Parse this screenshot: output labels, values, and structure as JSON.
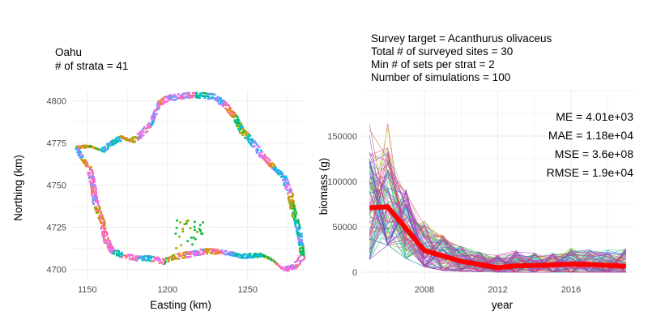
{
  "chart_data": [
    {
      "type": "scatter",
      "title_lines": [
        "Oahu",
        "# of strata = 41"
      ],
      "xlabel": "Easting (km)",
      "ylabel": "Northing (km)",
      "xlim": [
        1140,
        1285
      ],
      "ylim": [
        4694,
        4806
      ],
      "xticks": [
        1150,
        1200,
        1250
      ],
      "yticks": [
        4700,
        4725,
        4750,
        4775,
        4800
      ],
      "grid": true,
      "palette": [
        "#F8766D",
        "#D39200",
        "#93AA00",
        "#00BA38",
        "#00C19F",
        "#00B9E3",
        "#619CFF",
        "#DB72FB",
        "#FF61C3"
      ],
      "coastline": [
        [
          1144,
          4772
        ],
        [
          1152,
          4773
        ],
        [
          1160,
          4770
        ],
        [
          1165,
          4774
        ],
        [
          1172,
          4778
        ],
        [
          1178,
          4776
        ],
        [
          1182,
          4778
        ],
        [
          1190,
          4786
        ],
        [
          1195,
          4798
        ],
        [
          1200,
          4801
        ],
        [
          1207,
          4802
        ],
        [
          1218,
          4803
        ],
        [
          1229,
          4802
        ],
        [
          1236,
          4797
        ],
        [
          1242,
          4790
        ],
        [
          1246,
          4782
        ],
        [
          1250,
          4778
        ],
        [
          1258,
          4768
        ],
        [
          1266,
          4760
        ],
        [
          1272,
          4755
        ],
        [
          1276,
          4745
        ],
        [
          1278,
          4735
        ],
        [
          1281,
          4725
        ],
        [
          1283,
          4714
        ],
        [
          1284,
          4708
        ],
        [
          1279,
          4702
        ],
        [
          1272,
          4700
        ],
        [
          1265,
          4706
        ],
        [
          1258,
          4709
        ],
        [
          1247,
          4708
        ],
        [
          1233,
          4711
        ],
        [
          1222,
          4711
        ],
        [
          1211,
          4709
        ],
        [
          1205,
          4708
        ],
        [
          1198,
          4705
        ],
        [
          1190,
          4707
        ],
        [
          1181,
          4707
        ],
        [
          1172,
          4709
        ],
        [
          1166,
          4711
        ],
        [
          1162,
          4718
        ],
        [
          1160,
          4728
        ],
        [
          1156,
          4738
        ],
        [
          1154,
          4750
        ],
        [
          1152,
          4760
        ],
        [
          1147,
          4766
        ],
        [
          1144,
          4772
        ]
      ],
      "offshore_group": {
        "x_range": [
          1204,
          1222
        ],
        "y_range": [
          4713,
          4730
        ]
      }
    },
    {
      "type": "line",
      "title_lines": [
        "Survey target = Acanthurus olivaceus",
        "Total # of surveyed sites = 30",
        "Min # of sets per strat = 2",
        "Number of simulations = 100"
      ],
      "xlabel": "year",
      "ylabel": "biomass (g)",
      "xlim": [
        2004.6,
        2019.4
      ],
      "ylim": [
        -8000,
        200000
      ],
      "xticks": [
        2008,
        2012,
        2016
      ],
      "yticks": [
        0,
        50000,
        100000,
        150000
      ],
      "ytick_labels": [
        "0",
        "50000",
        "100000",
        "150000"
      ],
      "grid": true,
      "stats": [
        "ME = 4.01e+03",
        "MAE = 1.18e+04",
        "MSE = 3.6e+08",
        "RMSE = 1.9e+04"
      ],
      "n_simulations": 100,
      "years": [
        2005,
        2006,
        2007,
        2008,
        2009,
        2010,
        2011,
        2012,
        2013,
        2014,
        2015,
        2016,
        2017,
        2018,
        2019
      ],
      "true_series": {
        "color": "#ff0000",
        "values": [
          71000,
          72000,
          48000,
          24000,
          18000,
          12000,
          8500,
          5000,
          7000,
          7500,
          8000,
          9000,
          8500,
          7500,
          6500
        ]
      },
      "simulation_envelope": {
        "typical_max": [
          145000,
          150000,
          100000,
          62000,
          45000,
          32000,
          25000,
          22000,
          27000,
          24000,
          24000,
          30000,
          28000,
          28000,
          30000
        ],
        "peak_max": 190000,
        "typical_min": [
          14000,
          30000,
          15000,
          6000,
          2000,
          1000,
          500,
          0,
          0,
          0,
          0,
          0,
          0,
          0,
          0
        ]
      }
    }
  ]
}
